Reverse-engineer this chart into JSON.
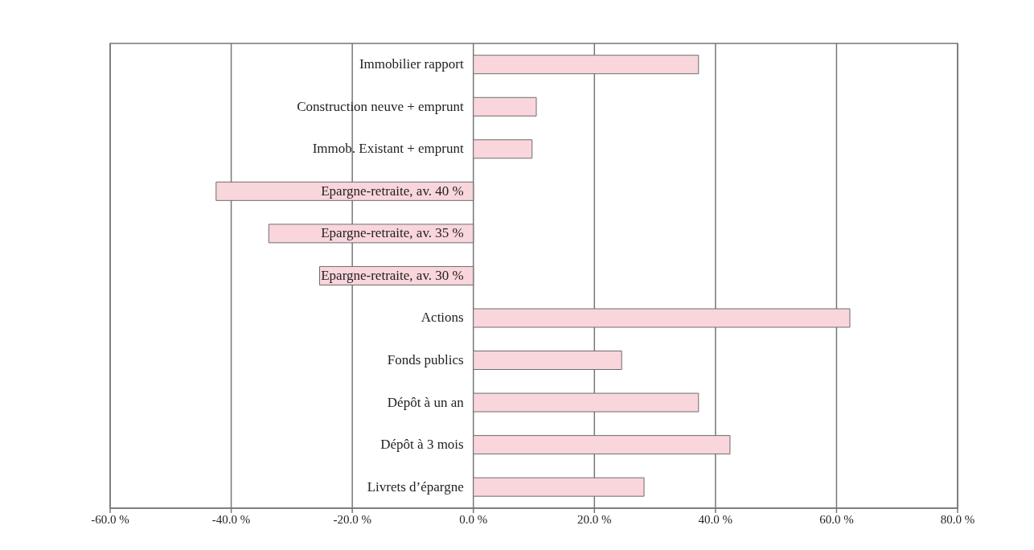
{
  "chart_data": {
    "type": "bar",
    "orientation": "horizontal",
    "categories": [
      "Immobilier rapport",
      "Construction neuve + emprunt",
      "Immob. Existant + emprunt",
      "Epargne-retraite, av. 40 %",
      "Epargne-retraite, av. 35 %",
      "Epargne-retraite, av. 30 %",
      "Actions",
      "Fonds publics",
      "Dépôt à un an",
      "Dépôt à 3 mois",
      "Livrets d’épargne"
    ],
    "values": [
      37.2,
      10.4,
      9.7,
      -42.5,
      -33.8,
      -25.4,
      62.2,
      24.5,
      37.2,
      42.4,
      28.2
    ],
    "color": "#f9d5dc",
    "xlim": [
      -60,
      80
    ],
    "xticks": [
      {
        "value": -60,
        "label": "-60.0 %"
      },
      {
        "value": -40,
        "label": "-40.0 %"
      },
      {
        "value": -20,
        "label": "-20.0 %"
      },
      {
        "value": 0,
        "label": "0.0 %"
      },
      {
        "value": 20,
        "label": "20.0 %"
      },
      {
        "value": 40,
        "label": "40.0 %"
      },
      {
        "value": 60,
        "label": "60.0 %"
      },
      {
        "value": 80,
        "label": "80.0 %"
      }
    ],
    "grid": "x"
  }
}
